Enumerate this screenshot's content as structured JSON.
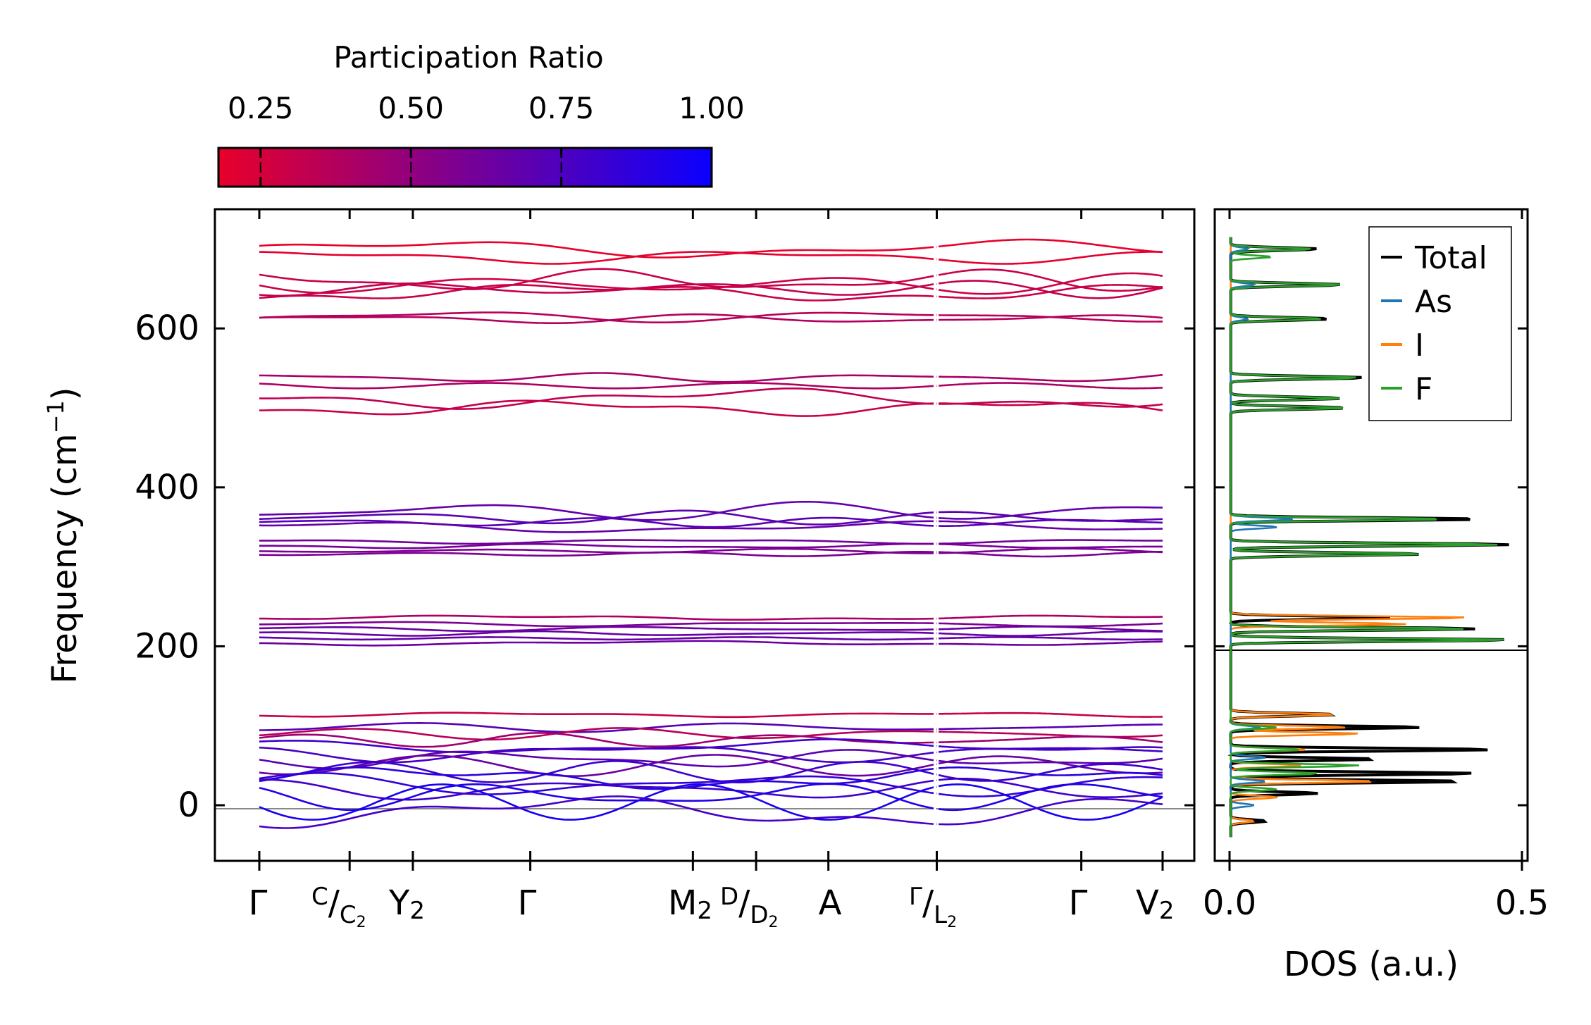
{
  "chart_data": [
    {
      "type": "colorbar",
      "title": "Participation Ratio",
      "range": [
        0.18,
        1.0
      ],
      "ticks": [
        0.25,
        0.5,
        0.75,
        1.0
      ],
      "tick_labels": [
        "0.25",
        "0.50",
        "0.75",
        "1.00"
      ],
      "colormap": [
        "#e8002a",
        "#0a00ff"
      ]
    },
    {
      "type": "line",
      "subtype": "phonon-band-structure",
      "ylabel": "Frequency (cm",
      "ylabel_sup": "−1",
      "ylabel_close": ")",
      "ylim": [
        -70,
        750
      ],
      "yticks": [
        0,
        200,
        400,
        600
      ],
      "ytick_labels": [
        "0",
        "200",
        "400",
        "600"
      ],
      "x_ticks": [
        0.0,
        0.1,
        0.17,
        0.3,
        0.48,
        0.55,
        0.63,
        0.75,
        0.91,
        1.0
      ],
      "kpath_labels": [
        "Γ",
        "C/C2",
        "Y2",
        "Γ",
        "M2",
        "D/D2",
        "A",
        "Γ/L2",
        "Γ",
        "V2"
      ],
      "segment_break": 0.75,
      "labels": {
        "gamma": "Γ",
        "c": "C",
        "slash": "/",
        "c2_main": "C",
        "c2_sub": "2",
        "y2_main": "Y",
        "y2_sub": "2",
        "m2_main": "M",
        "m2_sub": "2",
        "d": "D",
        "d2_main": "D",
        "d2_sub": "2",
        "a": "A",
        "l2_main": "L",
        "l2_sub": "2",
        "v2_main": "V",
        "v2_sub": "2"
      },
      "bands": [
        {
          "base": 700,
          "amp": 8,
          "pr": 0.18
        },
        {
          "base": 690,
          "amp": 6,
          "pr": 0.2
        },
        {
          "base": 660,
          "amp": 10,
          "pr": 0.3
        },
        {
          "base": 655,
          "amp": 12,
          "pr": 0.28
        },
        {
          "base": 650,
          "amp": 10,
          "pr": 0.32
        },
        {
          "base": 645,
          "amp": 8,
          "pr": 0.3
        },
        {
          "base": 615,
          "amp": 5,
          "pr": 0.36
        },
        {
          "base": 612,
          "amp": 4,
          "pr": 0.38
        },
        {
          "base": 538,
          "amp": 4,
          "pr": 0.42
        },
        {
          "base": 528,
          "amp": 5,
          "pr": 0.4
        },
        {
          "base": 512,
          "amp": 9,
          "pr": 0.33
        },
        {
          "base": 500,
          "amp": 7,
          "pr": 0.3
        },
        {
          "base": 370,
          "amp": 8,
          "pr": 0.68
        },
        {
          "base": 362,
          "amp": 6,
          "pr": 0.7
        },
        {
          "base": 356,
          "amp": 4,
          "pr": 0.72
        },
        {
          "base": 350,
          "amp": 5,
          "pr": 0.66
        },
        {
          "base": 332,
          "amp": 2,
          "pr": 0.62
        },
        {
          "base": 326,
          "amp": 2,
          "pr": 0.6
        },
        {
          "base": 320,
          "amp": 2,
          "pr": 0.58
        },
        {
          "base": 316,
          "amp": 2,
          "pr": 0.58
        },
        {
          "base": 236,
          "amp": 2,
          "pr": 0.4
        },
        {
          "base": 228,
          "amp": 2,
          "pr": 0.58
        },
        {
          "base": 222,
          "amp": 2,
          "pr": 0.64
        },
        {
          "base": 216,
          "amp": 2,
          "pr": 0.66
        },
        {
          "base": 210,
          "amp": 2,
          "pr": 0.66
        },
        {
          "base": 204,
          "amp": 2,
          "pr": 0.64
        },
        {
          "base": 114,
          "amp": 2,
          "pr": 0.3
        },
        {
          "base": 98,
          "amp": 4,
          "pr": 0.72
        },
        {
          "base": 90,
          "amp": 5,
          "pr": 0.35
        },
        {
          "base": 82,
          "amp": 6,
          "pr": 0.45
        },
        {
          "base": 74,
          "amp": 6,
          "pr": 0.8
        },
        {
          "base": 66,
          "amp": 8,
          "pr": 0.78
        },
        {
          "base": 58,
          "amp": 8,
          "pr": 0.7
        },
        {
          "base": 50,
          "amp": 9,
          "pr": 0.65
        },
        {
          "base": 42,
          "amp": 9,
          "pr": 0.82
        },
        {
          "base": 34,
          "amp": 10,
          "pr": 0.88
        },
        {
          "base": 26,
          "amp": 10,
          "pr": 0.85
        },
        {
          "base": 20,
          "amp": 9,
          "pr": 0.8
        },
        {
          "base": 12,
          "amp": 12,
          "pr": 0.92
        },
        {
          "base": 4,
          "amp": 16,
          "pr": 0.95
        },
        {
          "base": -8,
          "amp": 14,
          "pr": 0.78
        }
      ]
    },
    {
      "type": "line",
      "subtype": "density-of-states",
      "xlabel": "DOS (a.u.)",
      "xlim": [
        0.0,
        0.5
      ],
      "xticks": [
        0.0,
        0.5
      ],
      "xtick_labels": [
        "0.0",
        "0.5"
      ],
      "ylim": [
        -70,
        750
      ],
      "legend_position": "top-right",
      "series": [
        {
          "name": "Total",
          "color": "#000000",
          "peaks": [
            [
              700,
              0.15
            ],
            [
              655,
              0.19
            ],
            [
              612,
              0.17
            ],
            [
              538,
              0.23
            ],
            [
              512,
              0.19
            ],
            [
              500,
              0.2
            ],
            [
              360,
              0.43
            ],
            [
              328,
              0.48
            ],
            [
              316,
              0.33
            ],
            [
              236,
              0.28
            ],
            [
              222,
              0.42
            ],
            [
              208,
              0.48
            ],
            [
              114,
              0.18
            ],
            [
              98,
              0.33
            ],
            [
              70,
              0.45
            ],
            [
              58,
              0.25
            ],
            [
              40,
              0.42
            ],
            [
              30,
              0.4
            ],
            [
              15,
              0.15
            ],
            [
              -20,
              0.06
            ]
          ]
        },
        {
          "name": "As",
          "color": "#1f77b4",
          "peaks": [
            [
              700,
              0.03
            ],
            [
              655,
              0.04
            ],
            [
              612,
              0.03
            ],
            [
              360,
              0.11
            ],
            [
              350,
              0.08
            ],
            [
              98,
              0.05
            ],
            [
              60,
              0.06
            ],
            [
              30,
              0.06
            ],
            [
              0,
              0.04
            ]
          ]
        },
        {
          "name": "I",
          "color": "#ff7f0e",
          "peaks": [
            [
              236,
              0.41
            ],
            [
              228,
              0.3
            ],
            [
              114,
              0.18
            ],
            [
              98,
              0.2
            ],
            [
              90,
              0.22
            ],
            [
              70,
              0.13
            ],
            [
              50,
              0.12
            ],
            [
              30,
              0.25
            ],
            [
              10,
              0.08
            ],
            [
              -20,
              0.04
            ]
          ]
        },
        {
          "name": "F",
          "color": "#2ca02c",
          "peaks": [
            [
              700,
              0.14
            ],
            [
              690,
              0.07
            ],
            [
              655,
              0.19
            ],
            [
              612,
              0.16
            ],
            [
              538,
              0.22
            ],
            [
              512,
              0.19
            ],
            [
              500,
              0.2
            ],
            [
              360,
              0.37
            ],
            [
              328,
              0.46
            ],
            [
              316,
              0.33
            ],
            [
              222,
              0.4
            ],
            [
              208,
              0.48
            ],
            [
              98,
              0.08
            ],
            [
              70,
              0.12
            ],
            [
              50,
              0.22
            ],
            [
              40,
              0.15
            ],
            [
              20,
              0.08
            ]
          ]
        }
      ]
    }
  ]
}
